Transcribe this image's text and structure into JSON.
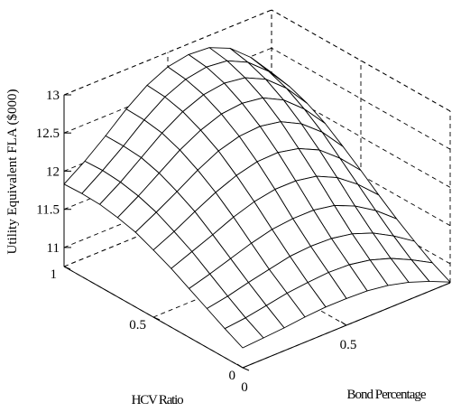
{
  "chart_data": {
    "type": "surface",
    "title": "",
    "xlabel": "Bond Percentage",
    "ylabel": "HCV Ratio",
    "zlabel": "Utility Equivalent FLA ($000)",
    "xlim": [
      0,
      1
    ],
    "ylim": [
      0,
      1
    ],
    "zlim": [
      10.75,
      13
    ],
    "x_ticks": [
      0,
      0.5
    ],
    "x_tick_labels": [
      "0",
      "0.5"
    ],
    "y_ticks": [
      0,
      0.5,
      1
    ],
    "y_tick_labels": [
      "0",
      "0.5",
      "1"
    ],
    "z_ticks": [
      11,
      11.5,
      12,
      12.5,
      13
    ],
    "z_tick_labels": [
      "11",
      "11.5",
      "12",
      "12.5",
      "13"
    ],
    "grid": true,
    "x": [
      0,
      0.1,
      0.2,
      0.3,
      0.4,
      0.5,
      0.6,
      0.7,
      0.8,
      0.9,
      1.0
    ],
    "y": [
      0,
      0.1,
      0.2,
      0.3,
      0.4,
      0.5,
      0.6,
      0.7,
      0.8,
      0.9,
      1.0
    ],
    "z": [
      [
        11.01,
        11.03,
        11.05,
        11.08,
        11.1,
        11.1,
        11.09,
        11.05,
        10.98,
        10.88,
        10.76
      ],
      [
        11.13,
        11.16,
        11.21,
        11.26,
        11.29,
        11.31,
        11.3,
        11.25,
        11.16,
        11.03,
        10.88
      ],
      [
        11.26,
        11.31,
        11.38,
        11.44,
        11.5,
        11.52,
        11.51,
        11.46,
        11.36,
        11.21,
        11.03
      ],
      [
        11.39,
        11.47,
        11.56,
        11.65,
        11.72,
        11.75,
        11.75,
        11.7,
        11.58,
        11.41,
        11.19
      ],
      [
        11.52,
        11.63,
        11.74,
        11.86,
        11.95,
        12.0,
        12.0,
        11.95,
        11.82,
        11.62,
        11.37
      ],
      [
        11.63,
        11.76,
        11.91,
        12.05,
        12.16,
        12.23,
        12.24,
        12.18,
        12.05,
        11.83,
        11.56
      ],
      [
        11.73,
        11.88,
        12.04,
        12.21,
        12.35,
        12.43,
        12.45,
        12.4,
        12.26,
        12.04,
        11.74
      ],
      [
        11.79,
        11.96,
        12.15,
        12.34,
        12.49,
        12.59,
        12.62,
        12.58,
        12.44,
        12.21,
        11.91
      ],
      [
        11.83,
        12.01,
        12.22,
        12.43,
        12.6,
        12.71,
        12.75,
        12.71,
        12.58,
        12.35,
        12.04
      ],
      [
        11.84,
        12.03,
        12.24,
        12.47,
        12.66,
        12.78,
        12.83,
        12.8,
        12.67,
        12.44,
        12.13
      ],
      [
        11.83,
        12.02,
        12.24,
        12.48,
        12.68,
        12.81,
        12.86,
        12.84,
        12.72,
        12.49,
        12.18
      ]
    ]
  }
}
